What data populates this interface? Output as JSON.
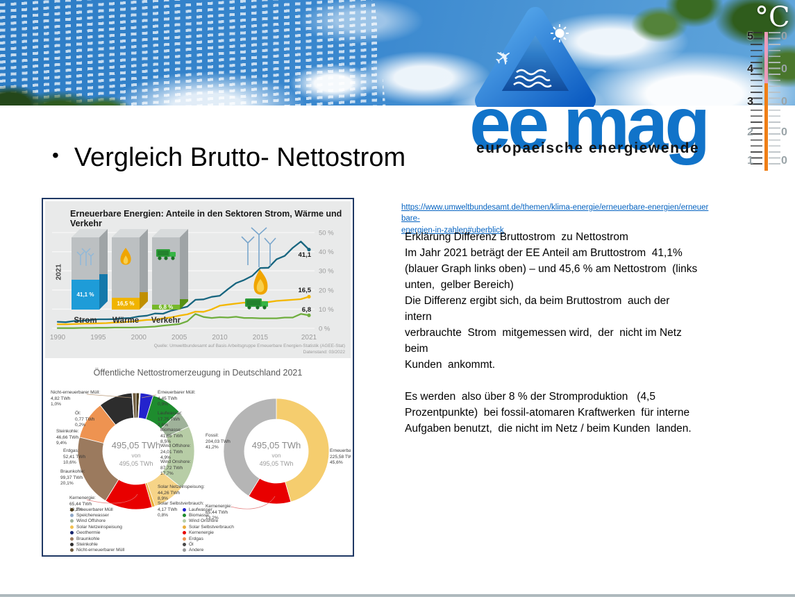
{
  "header": {
    "brand": "ee mag",
    "tagline": "europaeische energiewende",
    "thermometer": {
      "unit": "°C",
      "scale_left": [
        "5",
        "4",
        "3",
        "2",
        "1"
      ],
      "scale_right": [
        "0",
        "0",
        "0",
        "0",
        "0"
      ]
    }
  },
  "title": {
    "bullet": "•",
    "text": "Vergleich Brutto- Nettostrom"
  },
  "link": {
    "line1": "https://www.umweltbundesamt.de/themen/klima-energie/erneuerbare-energien/erneuerbare-",
    "line2": "energien-in-zahlen#uberblick"
  },
  "body": {
    "lines": [
      "Erklärung Differenz Bruttostrom  zu Nettostrom",
      "Im Jahr 2021 beträgt der EE Anteil am Bruttostrom  41,1%",
      "(blauer Graph links oben) – und 45,6 % am Nettostrom  (links",
      "unten,  gelber Bereich)",
      "Die Differenz ergibt sich, da beim Bruttostrom  auch der  intern",
      "verbrauchte  Strom  mitgemessen wird,  der  nicht im Netz beim",
      "Kunden  ankommt.",
      "",
      "Es werden  also über 8 % der Stromproduktion   (4,5",
      "Prozentpunkte)  bei fossil-atomaren Kraftwerken  für interne",
      "Aufgaben benutzt,  die nicht im Netz / beim Kunden  landen."
    ]
  },
  "chart_data": [
    {
      "type": "line",
      "title": "Erneuerbare Energien: Anteile in den Sektoren Strom, Wärme und Verkehr",
      "x": [
        1990,
        1991,
        1992,
        1993,
        1994,
        1995,
        1996,
        1997,
        1998,
        1999,
        2000,
        2001,
        2002,
        2003,
        2004,
        2005,
        2006,
        2007,
        2008,
        2009,
        2010,
        2011,
        2012,
        2013,
        2014,
        2015,
        2016,
        2017,
        2018,
        2019,
        2020,
        2021
      ],
      "series": [
        {
          "name": "Strom",
          "color": "#17657f",
          "values": [
            3.4,
            3.2,
            3.8,
            3.9,
            4.3,
            4.7,
            4.7,
            4.8,
            5.2,
            5.4,
            6.2,
            6.6,
            7.7,
            7.6,
            9.2,
            10.2,
            11.3,
            14.9,
            15.1,
            16.4,
            17.0,
            20.4,
            23.6,
            25.2,
            27.4,
            31.5,
            31.6,
            36.0,
            37.8,
            42.0,
            45.3,
            41.1
          ]
        },
        {
          "name": "Wärme",
          "color": "#f3b700",
          "values": [
            2.1,
            2.1,
            2.2,
            2.4,
            2.5,
            2.6,
            2.7,
            3.0,
            3.2,
            3.5,
            3.9,
            4.4,
            4.5,
            5.2,
            5.7,
            6.6,
            7.3,
            8.7,
            8.6,
            9.9,
            11.8,
            12.4,
            12.9,
            13.4,
            13.1,
            13.9,
            13.7,
            14.3,
            14.6,
            14.9,
            15.2,
            16.5
          ]
        },
        {
          "name": "Verkehr",
          "color": "#6fae3e",
          "values": [
            0.1,
            0.1,
            0.1,
            0.2,
            0.2,
            0.3,
            0.3,
            0.4,
            0.4,
            0.4,
            0.5,
            0.7,
            0.9,
            1.4,
            1.8,
            2.2,
            3.7,
            7.5,
            5.9,
            5.4,
            5.8,
            5.6,
            6.0,
            5.4,
            5.4,
            5.2,
            5.2,
            5.2,
            5.6,
            5.6,
            7.5,
            6.8
          ]
        }
      ],
      "x_ticks": [
        "1990",
        "1995",
        "2000",
        "2005",
        "2010",
        "2015",
        "2021"
      ],
      "y_ticks": [
        "50 %",
        "40 %",
        "30 %",
        "20 %",
        "10 %",
        "0 %"
      ],
      "ylim": [
        0,
        50
      ],
      "end_labels": [
        "41,1",
        "16,5",
        "6,8"
      ],
      "bars": {
        "year_label": "2021",
        "items": [
          {
            "label": "Strom",
            "value_label": "41,1 %",
            "pct": 41.1,
            "color": "#1e9cd8",
            "side": "#1579ab"
          },
          {
            "label": "Wärme",
            "value_label": "16,5 %",
            "pct": 16.5,
            "color": "#f0b400",
            "side": "#c08f00"
          },
          {
            "label": "Verkehr",
            "value_label": "6,8 %",
            "pct": 6.8,
            "color": "#76b82a",
            "side": "#579114"
          }
        ]
      },
      "source": "Quelle: Umweltbundesamt auf Basis Arbeitsgruppe Erneuerbare Energien-Statistik (AGEE-Stat)",
      "source2": "Datenstand: 03/2022"
    },
    {
      "type": "pie",
      "title": "Öffentliche Nettostromerzeugung in Deutschland 2021",
      "center": {
        "line1": "495,05 TWh",
        "line2": "von",
        "line3": "495,05 TWh"
      },
      "segments": [
        {
          "name": "Erneuerbarer Müll",
          "twh": 4.45,
          "twh_label": "4,45 TWh",
          "pct_label": "0,9%",
          "color": "#4a3b18"
        },
        {
          "name": "Speicherwasser",
          "twh": 1.15,
          "estimated": true,
          "color": "#8fa8c8"
        },
        {
          "name": "Geothermie",
          "twh": 0.22,
          "estimated": true,
          "color": "#16246e"
        },
        {
          "name": "Laufwasser",
          "twh": 17.75,
          "twh_label": "17,75 TWh",
          "pct_label": "3,6%",
          "color": "#2323cd"
        },
        {
          "name": "Biomasse",
          "twh": 41.85,
          "twh_label": "41,85 TWh",
          "pct_label": "8,5%",
          "color": "#1e8c2e"
        },
        {
          "name": "Wind Offshore",
          "twh": 24.01,
          "twh_label": "24,01 TWh",
          "pct_label": "4,9%",
          "color": "#9fb29a"
        },
        {
          "name": "Wind Onshore",
          "twh": 87.72,
          "twh_label": "87,72 TWh",
          "pct_label": "17,7%",
          "color": "#b7cda6"
        },
        {
          "name": "Solar Netzeinspeisung",
          "twh": 44.26,
          "twh_label": "44,26 TWh",
          "pct_label": "8,9%",
          "color": "#f6d488"
        },
        {
          "name": "Solar Selbstverbrauch",
          "twh": 4.17,
          "twh_label": "4,17 TWh",
          "pct_label": "0,8%",
          "color": "#e9ad3a"
        },
        {
          "name": "Kernenergie",
          "twh": 65.44,
          "twh_label": "65,44 TWh",
          "pct_label": "13,2%",
          "color": "#e80000"
        },
        {
          "name": "Braunkohle",
          "twh": 99.37,
          "twh_label": "99,37 TWh",
          "pct_label": "20,1%",
          "color": "#9b7a5e"
        },
        {
          "name": "Erdgas",
          "twh": 52.41,
          "twh_label": "52,41 TWh",
          "pct_label": "10,6%",
          "color": "#ee9351"
        },
        {
          "name": "Steinkohle",
          "twh": 46.66,
          "twh_label": "46,66 TWh",
          "pct_label": "9,4%",
          "color": "#2d2d2d"
        },
        {
          "name": "Öl",
          "twh": 0.77,
          "twh_label": "0,77 TWh",
          "pct_label": "0,2%",
          "color": "#555555"
        },
        {
          "name": "Nicht-erneuerbarer Müll",
          "twh": 4.82,
          "twh_label": "4,82 TWh",
          "pct_label": "1,0%",
          "color": "#6e5b3e"
        }
      ]
    },
    {
      "type": "pie",
      "center": {
        "line1": "495,05 TWh",
        "line2": "von",
        "line3": "495,05 TWh"
      },
      "segments": [
        {
          "name": "Erneuerbar",
          "twh": 225.58,
          "twh_label": "225,58 TWh",
          "pct_label": "45,6%",
          "color": "#f5cd6e"
        },
        {
          "name": "Kernenergie",
          "twh": 65.44,
          "twh_label": "65,44 TWh",
          "pct_label": "13,2%",
          "color": "#e80000"
        },
        {
          "name": "Fossil",
          "twh": 204.03,
          "twh_label": "204,03 TWh",
          "pct_label": "41,2%",
          "color": "#b5b5b5"
        }
      ]
    }
  ],
  "legend": {
    "col1": [
      {
        "label": "Erneuerbarer Müll",
        "color": "#4a3b18"
      },
      {
        "label": "Speicherwasser",
        "color": "#8fa8c8"
      },
      {
        "label": "Wind Offshore",
        "color": "#9fb29a"
      },
      {
        "label": "Solar Netzeinspeisung",
        "color": "#f2c14e"
      },
      {
        "label": "Geothermie",
        "color": "#16246e"
      },
      {
        "label": "Braunkohle",
        "color": "#9b7a5e"
      },
      {
        "label": "Steinkohle",
        "color": "#2d2d2d"
      },
      {
        "label": "Nicht-erneuerbarer Müll",
        "color": "#6e5b3e"
      }
    ],
    "col2": [
      {
        "label": "Laufwasser",
        "color": "#2323cd"
      },
      {
        "label": "Biomasse",
        "color": "#1e8c2e"
      },
      {
        "label": "Wind Onshore",
        "color": "#b7cda6"
      },
      {
        "label": "Solar Selbstverbrauch",
        "color": "#e9ad3a"
      },
      {
        "label": "Kernenergie",
        "color": "#e80000"
      },
      {
        "label": "Erdgas",
        "color": "#ee9351"
      },
      {
        "label": "Öl",
        "color": "#4a4a4a"
      },
      {
        "label": "Andere",
        "color": "#999999"
      }
    ]
  }
}
